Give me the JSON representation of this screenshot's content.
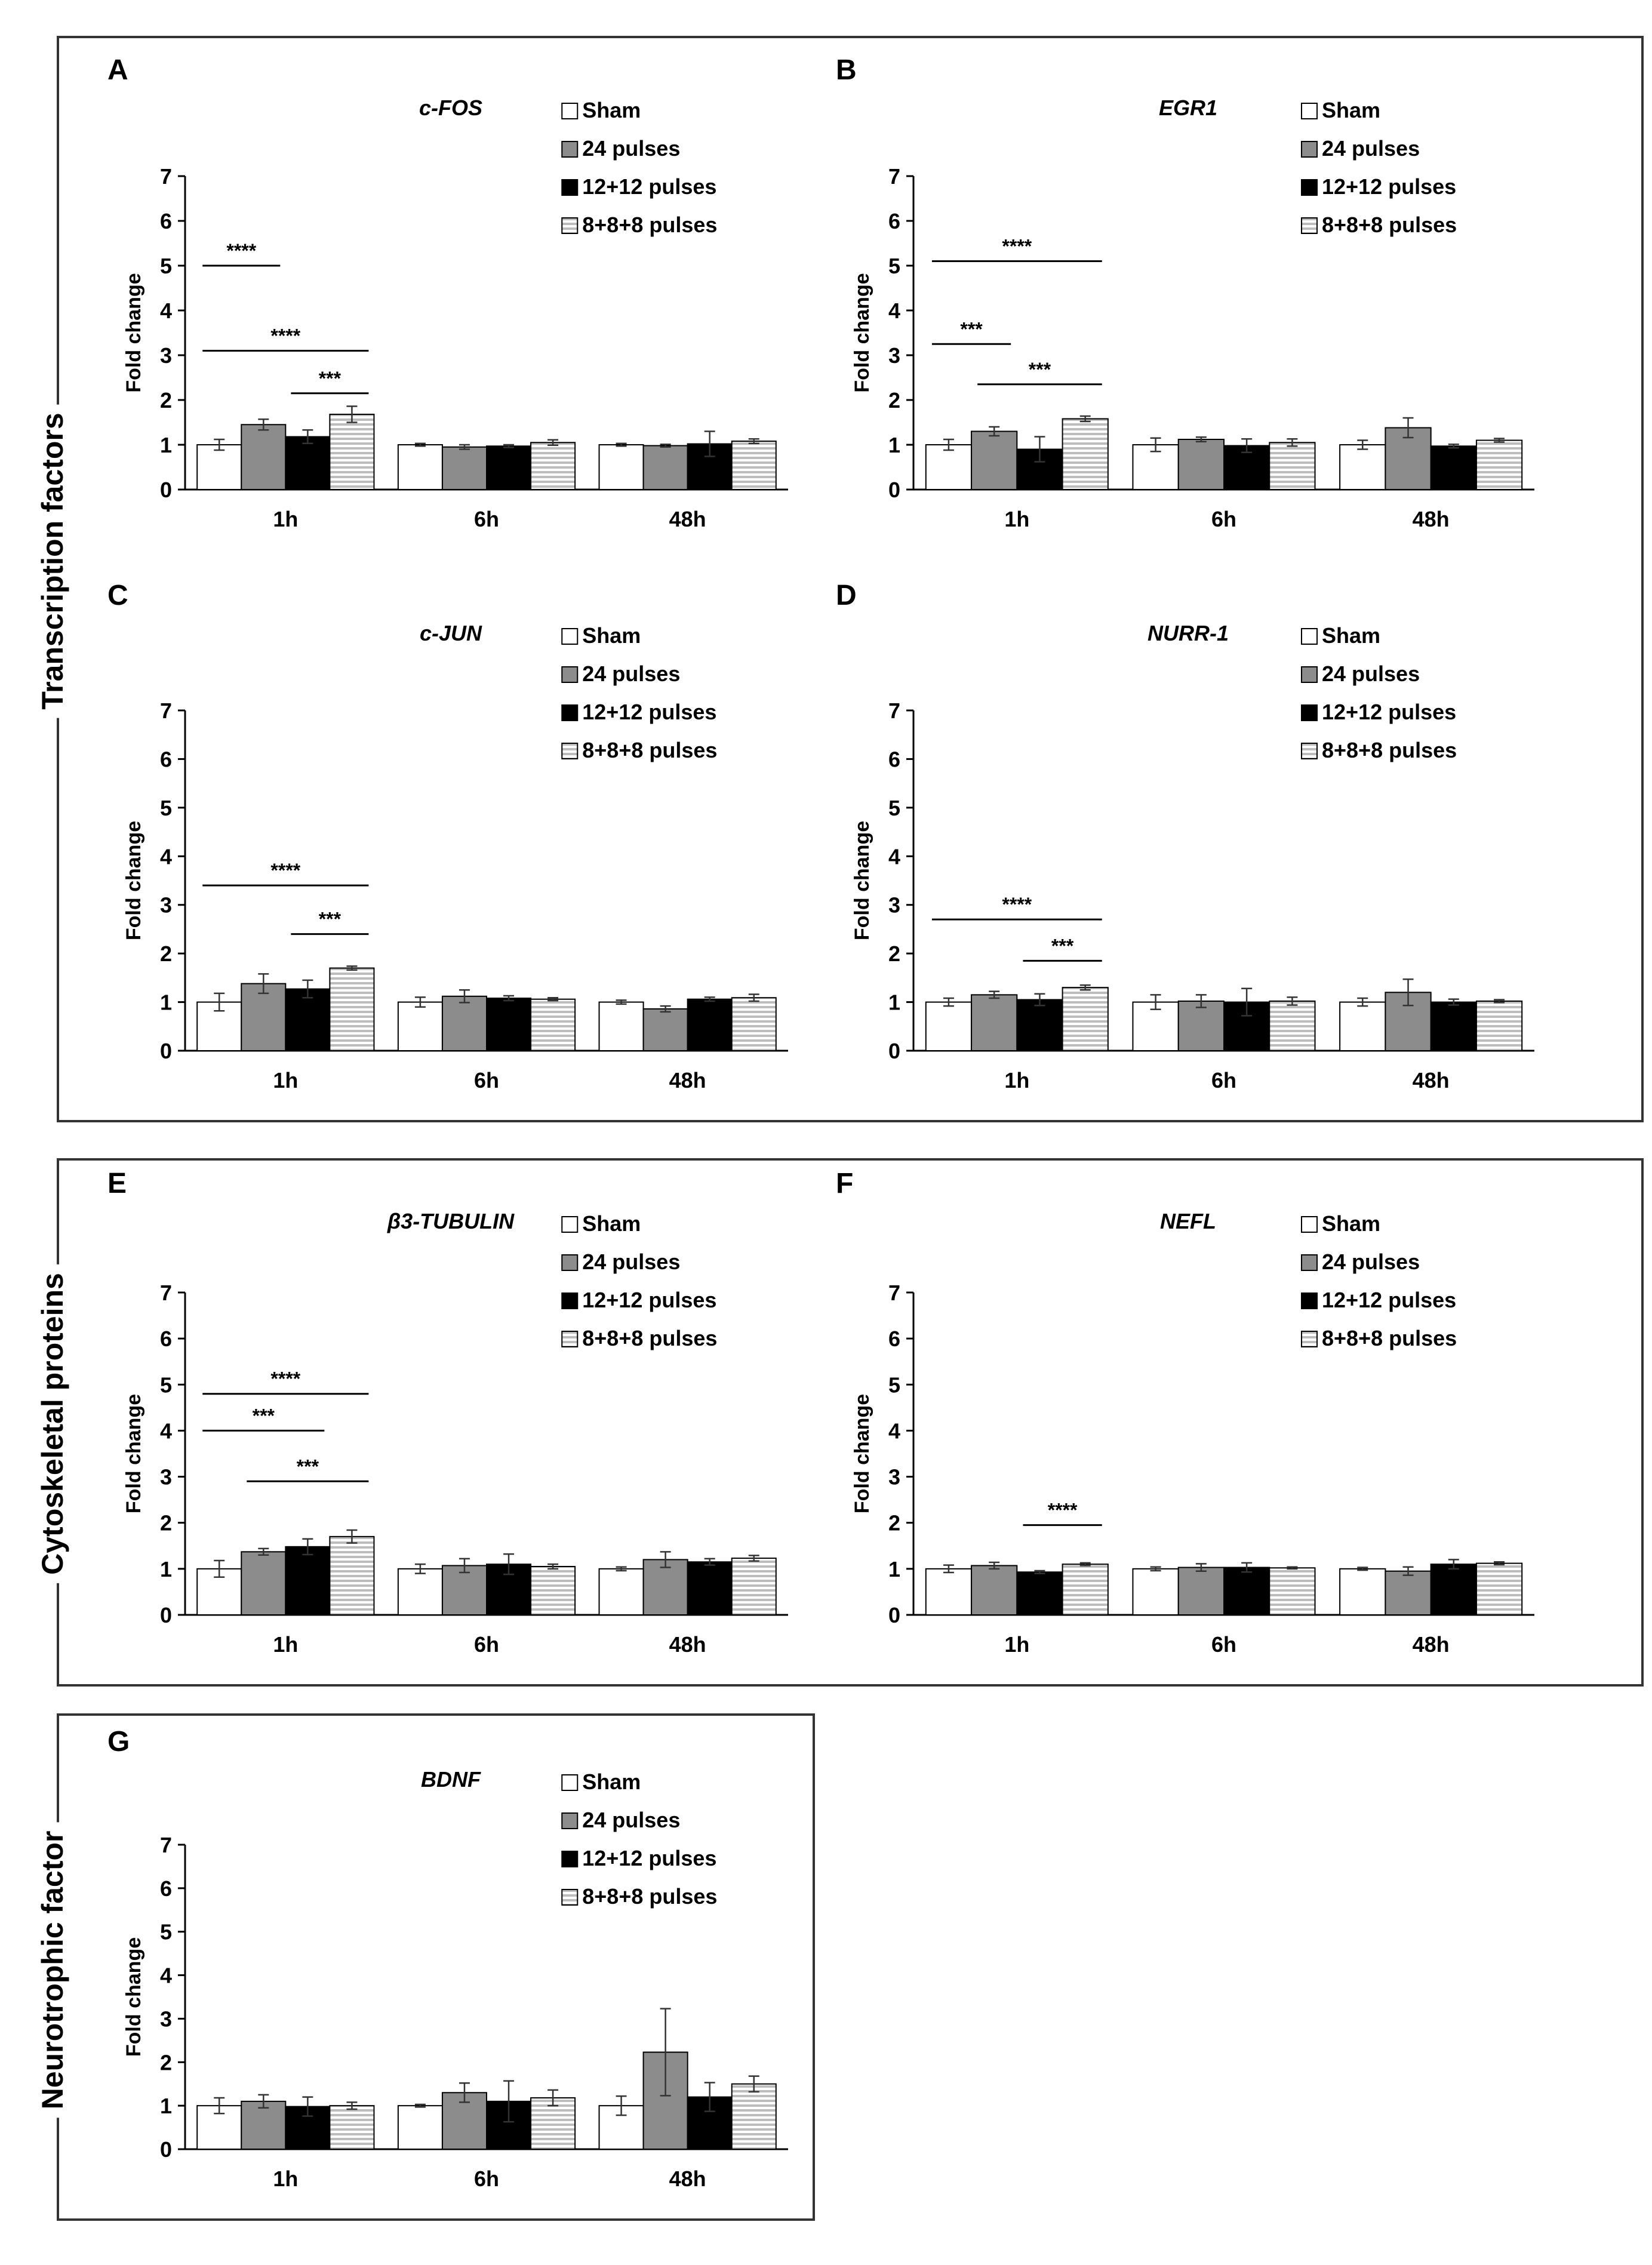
{
  "figure": {
    "groups": [
      {
        "title": "Transcription factors",
        "panels": [
          "A",
          "B",
          "C",
          "D"
        ]
      },
      {
        "title": "Cytoskeletal proteins",
        "panels": [
          "E",
          "F"
        ]
      },
      {
        "title": "Neurotrophic factor",
        "panels": [
          "G"
        ]
      }
    ]
  },
  "colors": {
    "sham": "#ffffff",
    "pulses24": "#8c8c8c",
    "pulses12x2": "#000000",
    "pulses8x3": "#d9d9d9",
    "stroke": "#000000",
    "significance": "#000000"
  },
  "chart_data": [
    {
      "panel": "A",
      "type": "bar",
      "title": "c-FOS",
      "title_italic": true,
      "ylabel": "Fold change",
      "xlabel": "",
      "ylim": [
        0,
        7
      ],
      "yticks": [
        0,
        1,
        2,
        3,
        4,
        5,
        6,
        7
      ],
      "categories": [
        "1h",
        "6h",
        "48h"
      ],
      "legend_position": "top-right",
      "grid": false,
      "series": [
        {
          "name": "Sham",
          "values": [
            1.0,
            1.0,
            1.0
          ],
          "errors": [
            0.12,
            0.03,
            0.03
          ]
        },
        {
          "name": "24 pulses",
          "values": [
            1.45,
            0.95,
            0.98
          ],
          "errors": [
            0.12,
            0.05,
            0.03
          ]
        },
        {
          "name": "12+12 pulses",
          "values": [
            1.18,
            0.97,
            1.02
          ],
          "errors": [
            0.15,
            0.03,
            0.28
          ]
        },
        {
          "name": "8+8+8 pulses",
          "values": [
            1.68,
            1.05,
            1.08
          ],
          "errors": [
            0.18,
            0.06,
            0.05
          ]
        }
      ],
      "significance": [
        {
          "category": 0,
          "from": 0,
          "to": 1,
          "y": 5.0,
          "label": "****"
        },
        {
          "category": 0,
          "from": 0,
          "to": 3,
          "y": 3.1,
          "label": "****"
        },
        {
          "category": 0,
          "from": 2,
          "to": 3,
          "y": 2.15,
          "label": "***"
        }
      ]
    },
    {
      "panel": "B",
      "type": "bar",
      "title": "EGR1",
      "title_italic": true,
      "ylabel": "Fold change",
      "xlabel": "",
      "ylim": [
        0,
        7
      ],
      "yticks": [
        0,
        1,
        2,
        3,
        4,
        5,
        6,
        7
      ],
      "categories": [
        "1h",
        "6h",
        "48h"
      ],
      "legend_position": "top-right",
      "grid": false,
      "series": [
        {
          "name": "Sham",
          "values": [
            1.0,
            1.0,
            1.0
          ],
          "errors": [
            0.12,
            0.15,
            0.1
          ]
        },
        {
          "name": "24 pulses",
          "values": [
            1.3,
            1.12,
            1.38
          ],
          "errors": [
            0.1,
            0.05,
            0.22
          ]
        },
        {
          "name": "12+12 pulses",
          "values": [
            0.9,
            0.98,
            0.97
          ],
          "errors": [
            0.28,
            0.15,
            0.04
          ]
        },
        {
          "name": "8+8+8 pulses",
          "values": [
            1.58,
            1.05,
            1.1
          ],
          "errors": [
            0.06,
            0.08,
            0.04
          ]
        }
      ],
      "significance": [
        {
          "category": 0,
          "from": 0,
          "to": 3,
          "y": 5.1,
          "label": "****"
        },
        {
          "category": 0,
          "from": 0,
          "to": 1,
          "y": 3.25,
          "label": "***"
        },
        {
          "category": 0,
          "from": 1,
          "to": 3,
          "y": 2.35,
          "label": "***"
        }
      ]
    },
    {
      "panel": "C",
      "type": "bar",
      "title": "c-JUN",
      "title_italic": true,
      "ylabel": "Fold change",
      "xlabel": "",
      "ylim": [
        0,
        7
      ],
      "yticks": [
        0,
        1,
        2,
        3,
        4,
        5,
        6,
        7
      ],
      "categories": [
        "1h",
        "6h",
        "48h"
      ],
      "legend_position": "top-right",
      "grid": false,
      "series": [
        {
          "name": "Sham",
          "values": [
            1.0,
            1.0,
            1.0
          ],
          "errors": [
            0.18,
            0.1,
            0.04
          ]
        },
        {
          "name": "24 pulses",
          "values": [
            1.38,
            1.12,
            0.86
          ],
          "errors": [
            0.2,
            0.13,
            0.06
          ]
        },
        {
          "name": "12+12 pulses",
          "values": [
            1.27,
            1.08,
            1.06
          ],
          "errors": [
            0.18,
            0.05,
            0.04
          ]
        },
        {
          "name": "8+8+8 pulses",
          "values": [
            1.7,
            1.06,
            1.09
          ],
          "errors": [
            0.04,
            0.03,
            0.07
          ]
        }
      ],
      "significance": [
        {
          "category": 0,
          "from": 0,
          "to": 3,
          "y": 3.4,
          "label": "****"
        },
        {
          "category": 0,
          "from": 2,
          "to": 3,
          "y": 2.4,
          "label": "***"
        }
      ]
    },
    {
      "panel": "D",
      "type": "bar",
      "title": "NURR-1",
      "title_italic": true,
      "ylabel": "Fold change",
      "xlabel": "",
      "ylim": [
        0,
        7
      ],
      "yticks": [
        0,
        1,
        2,
        3,
        4,
        5,
        6,
        7
      ],
      "categories": [
        "1h",
        "6h",
        "48h"
      ],
      "legend_position": "top-right",
      "grid": false,
      "series": [
        {
          "name": "Sham",
          "values": [
            1.0,
            1.0,
            1.0
          ],
          "errors": [
            0.08,
            0.15,
            0.08
          ]
        },
        {
          "name": "24 pulses",
          "values": [
            1.15,
            1.02,
            1.2
          ],
          "errors": [
            0.07,
            0.13,
            0.27
          ]
        },
        {
          "name": "12+12 pulses",
          "values": [
            1.05,
            1.0,
            1.0
          ],
          "errors": [
            0.12,
            0.28,
            0.06
          ]
        },
        {
          "name": "8+8+8 pulses",
          "values": [
            1.3,
            1.02,
            1.02
          ],
          "errors": [
            0.05,
            0.08,
            0.03
          ]
        }
      ],
      "significance": [
        {
          "category": 0,
          "from": 0,
          "to": 3,
          "y": 2.7,
          "label": "****"
        },
        {
          "category": 0,
          "from": 2,
          "to": 3,
          "y": 1.85,
          "label": "***"
        }
      ]
    },
    {
      "panel": "E",
      "type": "bar",
      "title": "β3-TUBULIN",
      "title_italic": true,
      "ylabel": "Fold change",
      "xlabel": "",
      "ylim": [
        0,
        7
      ],
      "yticks": [
        0,
        1,
        2,
        3,
        4,
        5,
        6,
        7
      ],
      "categories": [
        "1h",
        "6h",
        "48h"
      ],
      "legend_position": "top-right",
      "grid": false,
      "series": [
        {
          "name": "Sham",
          "values": [
            1.0,
            1.0,
            1.0
          ],
          "errors": [
            0.18,
            0.1,
            0.04
          ]
        },
        {
          "name": "24 pulses",
          "values": [
            1.37,
            1.07,
            1.2
          ],
          "errors": [
            0.07,
            0.15,
            0.17
          ]
        },
        {
          "name": "12+12 pulses",
          "values": [
            1.48,
            1.1,
            1.15
          ],
          "errors": [
            0.17,
            0.22,
            0.07
          ]
        },
        {
          "name": "8+8+8 pulses",
          "values": [
            1.7,
            1.05,
            1.23
          ],
          "errors": [
            0.14,
            0.05,
            0.06
          ]
        }
      ],
      "significance": [
        {
          "category": 0,
          "from": 0,
          "to": 3,
          "y": 4.8,
          "label": "****"
        },
        {
          "category": 0,
          "from": 0,
          "to": 2,
          "y": 4.0,
          "label": "***"
        },
        {
          "category": 0,
          "from": 1,
          "to": 3,
          "y": 2.9,
          "label": "***"
        }
      ]
    },
    {
      "panel": "F",
      "type": "bar",
      "title": "NEFL",
      "title_italic": true,
      "ylabel": "Fold change",
      "xlabel": "",
      "ylim": [
        0,
        7
      ],
      "yticks": [
        0,
        1,
        2,
        3,
        4,
        5,
        6,
        7
      ],
      "categories": [
        "1h",
        "6h",
        "48h"
      ],
      "legend_position": "top-right",
      "grid": false,
      "series": [
        {
          "name": "Sham",
          "values": [
            1.0,
            1.0,
            1.0
          ],
          "errors": [
            0.08,
            0.04,
            0.03
          ]
        },
        {
          "name": "24 pulses",
          "values": [
            1.07,
            1.03,
            0.95
          ],
          "errors": [
            0.07,
            0.08,
            0.09
          ]
        },
        {
          "name": "12+12 pulses",
          "values": [
            0.93,
            1.03,
            1.1
          ],
          "errors": [
            0.03,
            0.1,
            0.1
          ]
        },
        {
          "name": "8+8+8 pulses",
          "values": [
            1.1,
            1.02,
            1.12
          ],
          "errors": [
            0.03,
            0.02,
            0.03
          ]
        }
      ],
      "significance": [
        {
          "category": 0,
          "from": 2,
          "to": 3,
          "y": 1.95,
          "label": "****"
        }
      ]
    },
    {
      "panel": "G",
      "type": "bar",
      "title": "BDNF",
      "title_italic": true,
      "ylabel": "Fold change",
      "xlabel": "",
      "ylim": [
        0,
        7
      ],
      "yticks": [
        0,
        1,
        2,
        3,
        4,
        5,
        6,
        7
      ],
      "categories": [
        "1h",
        "6h",
        "48h"
      ],
      "legend_position": "top-right",
      "grid": false,
      "series": [
        {
          "name": "Sham",
          "values": [
            1.0,
            1.0,
            1.0
          ],
          "errors": [
            0.18,
            0.03,
            0.22
          ]
        },
        {
          "name": "24 pulses",
          "values": [
            1.1,
            1.3,
            2.23
          ],
          "errors": [
            0.15,
            0.22,
            1.0
          ]
        },
        {
          "name": "12+12 pulses",
          "values": [
            0.98,
            1.1,
            1.2
          ],
          "errors": [
            0.22,
            0.47,
            0.33
          ]
        },
        {
          "name": "8+8+8 pulses",
          "values": [
            1.0,
            1.18,
            1.5
          ],
          "errors": [
            0.08,
            0.18,
            0.18
          ]
        }
      ],
      "significance": []
    }
  ]
}
